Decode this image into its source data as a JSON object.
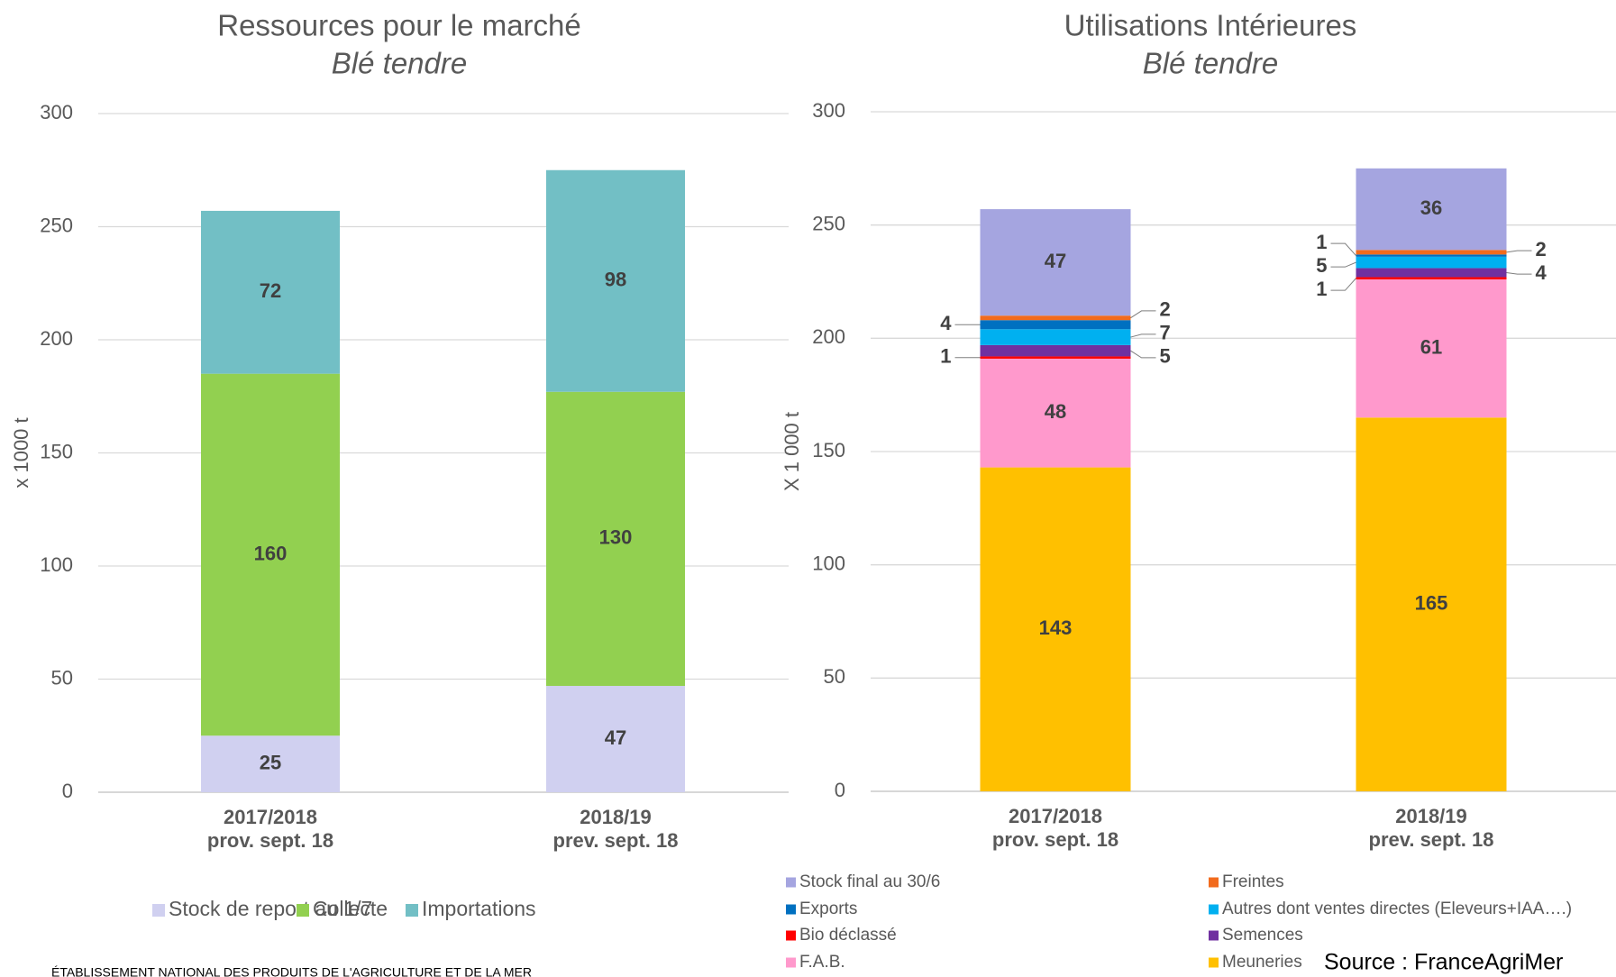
{
  "chart_data": [
    {
      "type": "bar",
      "stacked": true,
      "title": "Ressources pour le marché",
      "subtitle": "Blé tendre",
      "y_label": "x 1000 t",
      "categories": [
        [
          "2017/2018",
          "prov. sept. 18"
        ],
        [
          "2018/19",
          "prev. sept. 18"
        ]
      ],
      "series": [
        {
          "name": "Stock de report au 1/7",
          "color": "#d0d0f0",
          "values": [
            25,
            47
          ]
        },
        {
          "name": "Collecte",
          "color": "#92d050",
          "values": [
            160,
            130
          ]
        },
        {
          "name": "Importations",
          "color": "#72bfc5",
          "values": [
            72,
            98
          ]
        }
      ],
      "ylim": [
        0,
        300
      ],
      "yticks": [
        0,
        50,
        100,
        150,
        200,
        250,
        300
      ],
      "grid": true
    },
    {
      "type": "bar",
      "stacked": true,
      "title": "Utilisations Intérieures",
      "subtitle": "Blé tendre",
      "y_label": "X 1 000 t",
      "categories": [
        [
          "2017/2018",
          "prov. sept. 18"
        ],
        [
          "2018/19",
          "prev. sept. 18"
        ]
      ],
      "series": [
        {
          "name": "Meuneries",
          "color": "#ffc000",
          "values": [
            143,
            165
          ]
        },
        {
          "name": "F.A.B.",
          "color": "#ff99cc",
          "values": [
            48,
            61
          ]
        },
        {
          "name": "Bio déclassé",
          "color": "#ff0000",
          "values": [
            1,
            1
          ]
        },
        {
          "name": "Semences",
          "color": "#7030a0",
          "values": [
            5,
            4
          ]
        },
        {
          "name": "Autres dont ventes directes (Eleveurs+IAA….)",
          "color": "#00b0f0",
          "values": [
            7,
            5
          ]
        },
        {
          "name": "Exports",
          "color": "#0070c0",
          "values": [
            4,
            1
          ]
        },
        {
          "name": "Freintes",
          "color": "#f26b1d",
          "values": [
            2,
            2
          ]
        },
        {
          "name": "Stock final au 30/6",
          "color": "#a5a5e0",
          "values": [
            47,
            36
          ]
        }
      ],
      "ylim": [
        0,
        300
      ],
      "yticks": [
        0,
        50,
        100,
        150,
        200,
        250,
        300
      ],
      "grid": true
    }
  ],
  "source": "Source : FranceAgriMer",
  "footer": "ÉTABLISSEMENT NATIONAL DES PRODUITS DE L'AGRICULTURE ET DE LA MER"
}
